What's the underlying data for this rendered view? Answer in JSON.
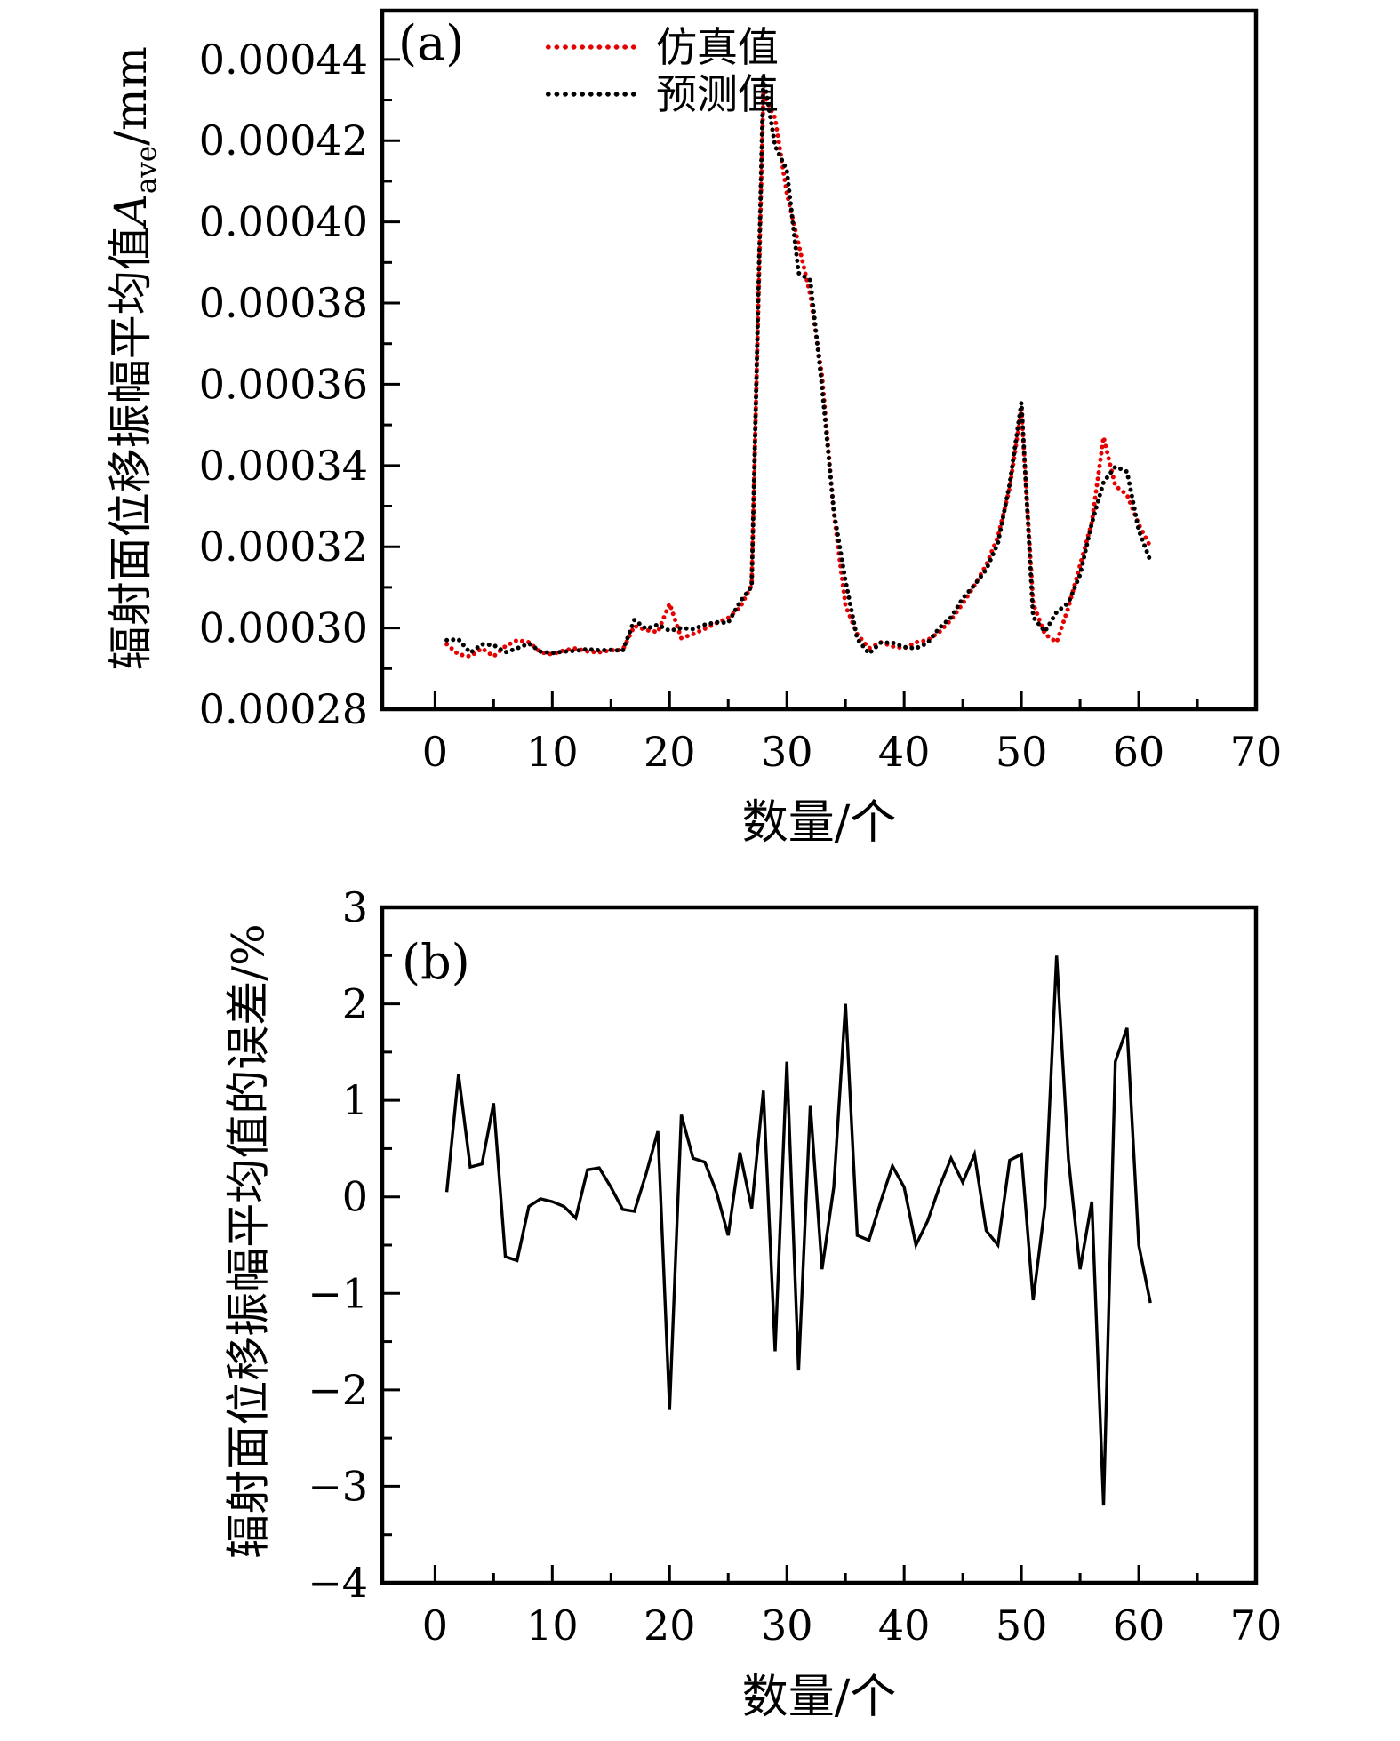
{
  "colors": {
    "simulation_red": "#e60000",
    "prediction_black": "#000000",
    "frame": "#000000",
    "background": "#ffffff"
  },
  "panel_a": {
    "label": "(a)",
    "x_title": "数量/个",
    "y_title": {
      "prefix": "辐射面位移振幅平均值",
      "variable": "A",
      "subscript": "ave",
      "suffix": "/mm"
    },
    "legend": [
      {
        "name": "仿真值"
      },
      {
        "name": "预测值"
      }
    ]
  },
  "panel_b": {
    "label": "(b)",
    "x_title": "数量/个",
    "y_title": "辐射面位移振幅平均值的误差/%"
  },
  "chart_data": [
    {
      "type": "line",
      "panel": "a",
      "line_style": "dotted",
      "title": "",
      "xlabel": "数量/个",
      "ylabel": "辐射面位移振幅平均值 A_ave /mm",
      "xlim": [
        -4.5,
        70
      ],
      "ylim": [
        0.00028,
        0.000452
      ],
      "grid": false,
      "legend_position": "top-left-inside",
      "x_major_ticks": [
        0,
        10,
        20,
        30,
        40,
        50,
        60,
        70
      ],
      "x_tick_labels": [
        "0",
        "10",
        "20",
        "30",
        "40",
        "50",
        "60",
        "70"
      ],
      "x_minor_ticks": [
        5,
        15,
        25,
        35,
        45,
        55,
        65
      ],
      "y_major_ticks": [
        0.00028,
        0.0003,
        0.00032,
        0.00034,
        0.00036,
        0.00038,
        0.0004,
        0.00042,
        0.00044
      ],
      "y_tick_labels": [
        "0.00028",
        "0.00030",
        "0.00032",
        "0.00034",
        "0.00036",
        "0.00038",
        "0.00040",
        "0.00042",
        "0.00044"
      ],
      "y_minor_ticks": [
        0.00029,
        0.00031,
        0.00033,
        0.00035,
        0.00037,
        0.00039,
        0.00041,
        0.00043
      ],
      "x": [
        1,
        2,
        3,
        4,
        5,
        6,
        7,
        8,
        9,
        10,
        11,
        12,
        13,
        14,
        15,
        16,
        17,
        18,
        19,
        20,
        21,
        22,
        23,
        24,
        25,
        26,
        27,
        28,
        29,
        30,
        31,
        32,
        33,
        34,
        35,
        36,
        37,
        38,
        39,
        40,
        41,
        42,
        43,
        44,
        45,
        46,
        47,
        48,
        49,
        50,
        51,
        52,
        53,
        54,
        55,
        56,
        57,
        58,
        59,
        60,
        61
      ],
      "series": [
        {
          "name": "仿真值",
          "color": "#e60000",
          "values": [
            0.000296,
            0.0002935,
            0.000293,
            0.000295,
            0.000293,
            0.0002955,
            0.000297,
            0.0002965,
            0.000294,
            0.0002935,
            0.0002945,
            0.000295,
            0.0002942,
            0.000294,
            0.0002945,
            0.0002946,
            0.0003005,
            0.0002995,
            0.000299,
            0.000306,
            0.0002975,
            0.0002985,
            0.0002998,
            0.0003012,
            0.0003025,
            0.000305,
            0.0003105,
            0.0004315,
            0.0004255,
            0.000407,
            0.0003945,
            0.000382,
            0.000362,
            0.0003285,
            0.0003055,
            0.0002985,
            0.000295,
            0.0002965,
            0.0002955,
            0.000295,
            0.0002965,
            0.000297,
            0.000299,
            0.000302,
            0.000306,
            0.0003105,
            0.0003155,
            0.0003225,
            0.0003345,
            0.000354,
            0.000306,
            0.0002985,
            0.0002965,
            0.000305,
            0.0003155,
            0.000326,
            0.000347,
            0.000335,
            0.0003328,
            0.0003255,
            0.00032
          ]
        },
        {
          "name": "预测值",
          "color": "#000000",
          "values": [
            0.000297,
            0.0002972,
            0.0002939,
            0.000296,
            0.0002958,
            0.000294,
            0.000295,
            0.0002962,
            0.0002942,
            0.0002938,
            0.0002942,
            0.0002944,
            0.0002948,
            0.0002945,
            0.0002946,
            0.0002944,
            0.000302,
            0.0002998,
            0.0003008,
            0.0002993,
            0.0003,
            0.0002997,
            0.0003008,
            0.0003014,
            0.0003013,
            0.0003064,
            0.0003102,
            0.0004362,
            0.0004187,
            0.0004127,
            0.0003874,
            0.0003856,
            0.0003593,
            0.0003288,
            0.0003116,
            0.0002973,
            0.0002937,
            0.0002964,
            0.0002964,
            0.0002953,
            0.000295,
            0.0002963,
            0.0003,
            0.0003026,
            0.0003073,
            0.0003106,
            0.0003144,
            0.0003209,
            0.0003355,
            0.0003555,
            0.0003027,
            0.0002991,
            0.0003039,
            0.0003062,
            0.0003131,
            0.0003258,
            0.0003359,
            0.0003397,
            0.0003385,
            0.000324,
            0.0003165
          ]
        }
      ]
    },
    {
      "type": "line",
      "panel": "b",
      "line_style": "solid",
      "title": "",
      "xlabel": "数量/个",
      "ylabel": "辐射面位移振幅平均值的误差/%",
      "xlim": [
        -4.5,
        70
      ],
      "ylim": [
        -4,
        3
      ],
      "grid": false,
      "x_major_ticks": [
        0,
        10,
        20,
        30,
        40,
        50,
        60,
        70
      ],
      "x_tick_labels": [
        "0",
        "10",
        "20",
        "30",
        "40",
        "50",
        "60",
        "70"
      ],
      "x_minor_ticks": [
        5,
        15,
        25,
        35,
        45,
        55,
        65
      ],
      "y_major_ticks": [
        -4,
        -3,
        -2,
        -1,
        0,
        1,
        2,
        3
      ],
      "y_tick_labels": [
        "−4",
        "−3",
        "−2",
        "−1",
        "0",
        "1",
        "2",
        "3"
      ],
      "y_minor_ticks": [
        -3.5,
        -2.5,
        -1.5,
        -0.5,
        0.5,
        1.5,
        2.5
      ],
      "x": [
        1,
        2,
        3,
        4,
        5,
        6,
        7,
        8,
        9,
        10,
        11,
        12,
        13,
        14,
        15,
        16,
        17,
        18,
        19,
        20,
        21,
        22,
        23,
        24,
        25,
        26,
        27,
        28,
        29,
        30,
        31,
        32,
        33,
        34,
        35,
        36,
        37,
        38,
        39,
        40,
        41,
        42,
        43,
        44,
        45,
        46,
        47,
        48,
        49,
        50,
        51,
        52,
        53,
        54,
        55,
        56,
        57,
        58,
        59,
        60,
        61
      ],
      "series": [
        {
          "name": "误差",
          "color": "#000000",
          "values": [
            0.05,
            1.27,
            0.31,
            0.34,
            0.97,
            -0.62,
            -0.66,
            -0.1,
            -0.02,
            -0.05,
            -0.1,
            -0.22,
            0.28,
            0.3,
            0.1,
            -0.13,
            -0.15,
            0.24,
            0.68,
            -2.2,
            0.85,
            0.4,
            0.36,
            0.05,
            -0.4,
            0.46,
            -0.12,
            1.1,
            -1.6,
            1.4,
            -1.8,
            0.95,
            -0.75,
            0.1,
            2.0,
            -0.4,
            -0.45,
            -0.05,
            0.32,
            0.1,
            -0.5,
            -0.25,
            0.1,
            0.4,
            0.15,
            0.44,
            -0.35,
            -0.5,
            0.38,
            0.44,
            -1.07,
            -0.1,
            2.5,
            0.4,
            -0.75,
            -0.05,
            -3.2,
            1.4,
            1.75,
            -0.5,
            -1.1
          ]
        }
      ]
    }
  ]
}
